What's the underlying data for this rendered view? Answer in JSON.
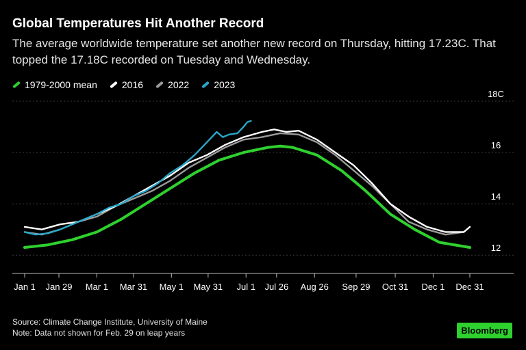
{
  "title": "Global Temperatures Hit Another Record",
  "subtitle": "The average worldwide temperature set another new record on Thursday, hitting 17.23C. That topped the 17.18C recorded on Tuesday and Wednesday.",
  "source": "Source: Climate Change Institute, University of Maine",
  "note": "Note: Data not shown for Feb. 29 on leap years",
  "brand": "Bloomberg",
  "colors": {
    "mean": "#2ed12e",
    "y2016": "#ffffff",
    "y2022": "#9a9a9a",
    "y2023": "#2aa7c9"
  },
  "chart_data": {
    "type": "line",
    "xlabel": "",
    "ylabel": "",
    "x_range_day": [
      1,
      365
    ],
    "ylim": [
      11.5,
      18
    ],
    "y_ticks": [
      {
        "value": 18,
        "label": "18C"
      },
      {
        "value": 16,
        "label": "16"
      },
      {
        "value": 14,
        "label": "14"
      },
      {
        "value": 12,
        "label": "12"
      }
    ],
    "x_ticks": [
      {
        "day": 1,
        "label": "Jan 1"
      },
      {
        "day": 29,
        "label": "Jan 29"
      },
      {
        "day": 60,
        "label": "Mar 1"
      },
      {
        "day": 90,
        "label": "Mar 31"
      },
      {
        "day": 121,
        "label": "May 1"
      },
      {
        "day": 151,
        "label": "May 31"
      },
      {
        "day": 182,
        "label": "Jul 1"
      },
      {
        "day": 207,
        "label": "Jul 26"
      },
      {
        "day": 238,
        "label": "Aug 26"
      },
      {
        "day": 272,
        "label": "Sep 29"
      },
      {
        "day": 304,
        "label": "Oct 31"
      },
      {
        "day": 335,
        "label": "Dec 1"
      },
      {
        "day": 365,
        "label": "Dec 31"
      }
    ],
    "legend_position": "top-left",
    "series": [
      {
        "name": "1979-2000 mean",
        "color_key": "mean",
        "x": [
          1,
          20,
          40,
          60,
          80,
          100,
          120,
          140,
          160,
          180,
          200,
          210,
          220,
          240,
          260,
          280,
          300,
          320,
          340,
          365
        ],
        "y": [
          12.3,
          12.4,
          12.6,
          12.9,
          13.4,
          14.0,
          14.6,
          15.2,
          15.7,
          16.0,
          16.2,
          16.25,
          16.2,
          15.9,
          15.3,
          14.5,
          13.6,
          13.0,
          12.5,
          12.3
        ]
      },
      {
        "name": "2016",
        "color_key": "y2016",
        "x": [
          1,
          15,
          30,
          45,
          60,
          75,
          90,
          105,
          120,
          135,
          150,
          165,
          180,
          195,
          205,
          215,
          225,
          240,
          255,
          270,
          285,
          300,
          315,
          330,
          345,
          360,
          365
        ],
        "y": [
          13.1,
          13.0,
          13.2,
          13.3,
          13.6,
          13.9,
          14.3,
          14.7,
          15.1,
          15.6,
          15.9,
          16.3,
          16.6,
          16.8,
          16.9,
          16.8,
          16.85,
          16.5,
          16.0,
          15.5,
          14.8,
          14.0,
          13.5,
          13.1,
          12.9,
          12.9,
          13.1
        ]
      },
      {
        "name": "2022",
        "color_key": "y2022",
        "x": [
          1,
          15,
          30,
          45,
          60,
          75,
          90,
          105,
          120,
          135,
          150,
          165,
          180,
          195,
          210,
          225,
          240,
          255,
          270,
          285,
          300,
          315,
          330,
          345,
          360
        ],
        "y": [
          12.9,
          12.8,
          13.0,
          13.3,
          13.5,
          13.9,
          14.2,
          14.5,
          14.9,
          15.4,
          15.8,
          16.2,
          16.5,
          16.6,
          16.75,
          16.7,
          16.4,
          15.9,
          15.3,
          14.7,
          14.0,
          13.3,
          13.0,
          12.8,
          12.9
        ]
      },
      {
        "name": "2023",
        "color_key": "y2023",
        "x": [
          1,
          10,
          20,
          30,
          40,
          50,
          60,
          70,
          80,
          90,
          100,
          110,
          120,
          130,
          140,
          150,
          158,
          163,
          168,
          175,
          180,
          183,
          186
        ],
        "y": [
          12.9,
          12.8,
          12.85,
          13.0,
          13.2,
          13.4,
          13.6,
          13.85,
          14.0,
          14.3,
          14.5,
          14.8,
          15.2,
          15.5,
          15.9,
          16.4,
          16.8,
          16.6,
          16.7,
          16.75,
          17.0,
          17.18,
          17.23
        ]
      }
    ]
  }
}
